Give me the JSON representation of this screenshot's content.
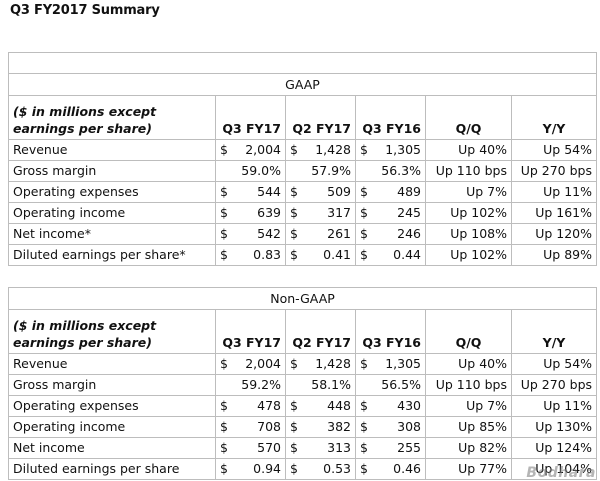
{
  "title": "Q3 FY2017 Summary",
  "columns": {
    "description": "($ in millions except earnings per share)",
    "q3fy17": "Q3 FY17",
    "q2fy17": "Q2 FY17",
    "q3fy16": "Q3 FY16",
    "qq": "Q/Q",
    "yy": "Y/Y"
  },
  "gaap": {
    "band": "GAAP",
    "rows": [
      {
        "label": "Revenue",
        "a_dollar": "$",
        "a": "2,004",
        "b_dollar": "$",
        "b": "1,428",
        "c_dollar": "$",
        "c": "1,305",
        "qq": "Up 40%",
        "yy": "Up 54%"
      },
      {
        "label": "Gross margin",
        "a_dollar": "",
        "a": "59.0%",
        "b_dollar": "",
        "b": "57.9%",
        "c_dollar": "",
        "c": "56.3%",
        "qq": "Up 110 bps",
        "yy": "Up 270 bps"
      },
      {
        "label": "Operating expenses",
        "a_dollar": "$",
        "a": "544",
        "b_dollar": "$",
        "b": "509",
        "c_dollar": "$",
        "c": "489",
        "qq": "Up 7%",
        "yy": "Up 11%"
      },
      {
        "label": "Operating income",
        "a_dollar": "$",
        "a": "639",
        "b_dollar": "$",
        "b": "317",
        "c_dollar": "$",
        "c": "245",
        "qq": "Up 102%",
        "yy": "Up 161%"
      },
      {
        "label": "Net income*",
        "a_dollar": "$",
        "a": "542",
        "b_dollar": "$",
        "b": "261",
        "c_dollar": "$",
        "c": "246",
        "qq": "Up 108%",
        "yy": "Up 120%"
      },
      {
        "label": "Diluted earnings per share*",
        "a_dollar": "$",
        "a": "0.83",
        "b_dollar": "$",
        "b": "0.41",
        "c_dollar": "$",
        "c": "0.44",
        "qq": "Up 102%",
        "yy": "Up 89%"
      }
    ]
  },
  "nongaap": {
    "band": "Non-GAAP",
    "rows": [
      {
        "label": "Revenue",
        "a_dollar": "$",
        "a": "2,004",
        "b_dollar": "$",
        "b": "1,428",
        "c_dollar": "$",
        "c": "1,305",
        "qq": "Up 40%",
        "yy": "Up 54%"
      },
      {
        "label": "Gross margin",
        "a_dollar": "",
        "a": "59.2%",
        "b_dollar": "",
        "b": "58.1%",
        "c_dollar": "",
        "c": "56.5%",
        "qq": "Up 110 bps",
        "yy": "Up 270 bps"
      },
      {
        "label": "Operating expenses",
        "a_dollar": "$",
        "a": "478",
        "b_dollar": "$",
        "b": "448",
        "c_dollar": "$",
        "c": "430",
        "qq": "Up 7%",
        "yy": "Up 11%"
      },
      {
        "label": "Operating income",
        "a_dollar": "$",
        "a": "708",
        "b_dollar": "$",
        "b": "382",
        "c_dollar": "$",
        "c": "308",
        "qq": "Up 85%",
        "yy": "Up 130%"
      },
      {
        "label": "Net income",
        "a_dollar": "$",
        "a": "570",
        "b_dollar": "$",
        "b": "313",
        "c_dollar": "$",
        "c": "255",
        "qq": "Up 82%",
        "yy": "Up 124%"
      },
      {
        "label": "Diluted earnings per share",
        "a_dollar": "$",
        "a": "0.94",
        "b_dollar": "$",
        "b": "0.53",
        "c_dollar": "$",
        "c": "0.46",
        "qq": "Up 77%",
        "yy": "Up 104%"
      }
    ]
  },
  "watermark": "Bodhara"
}
